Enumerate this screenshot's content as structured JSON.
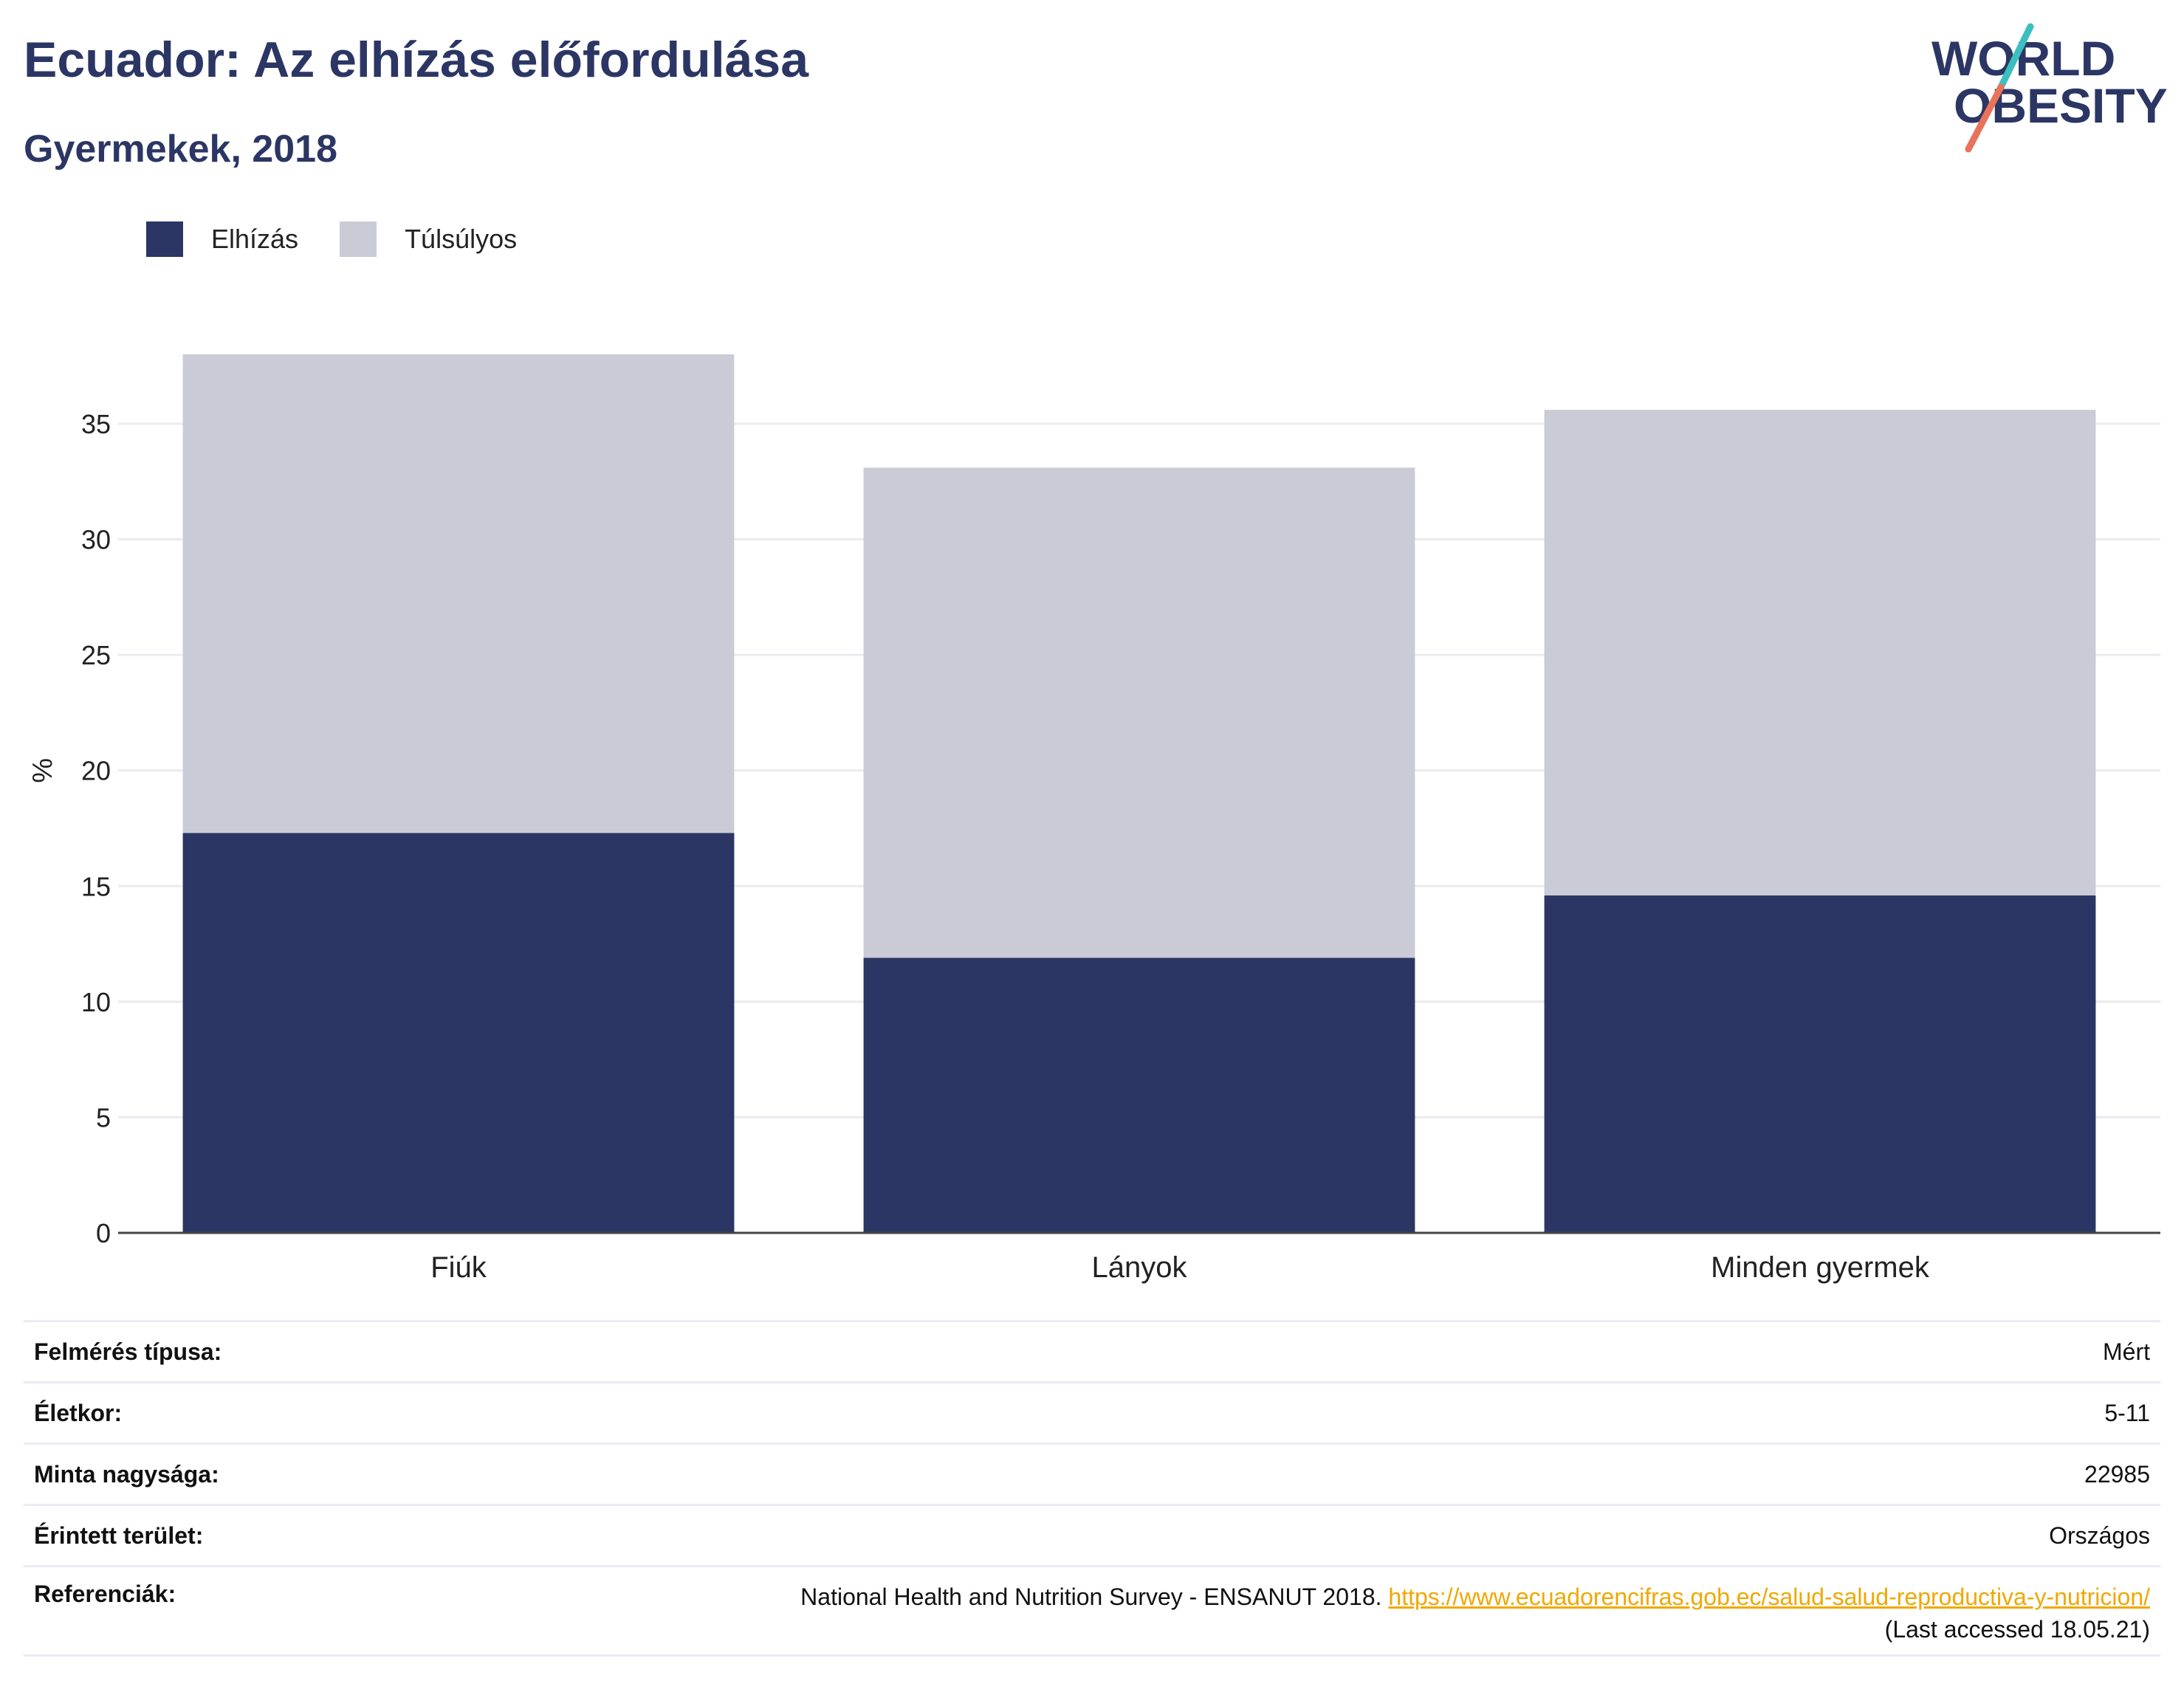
{
  "title": "Ecuador: Az elhízás előfordulása",
  "subtitle": "Gyermekek, 2018",
  "logo": {
    "line1": "WORLD",
    "line2": "OBESITY",
    "accent_teal": "#3bbfbf",
    "accent_coral": "#e8735a",
    "text_color": "#2b3664"
  },
  "legend": [
    {
      "label": "Elhízás",
      "color": "#2b3664"
    },
    {
      "label": "Túlsúlyos",
      "color": "#cacbd7"
    }
  ],
  "chart_data": {
    "type": "bar",
    "stacked": true,
    "categories": [
      "Fiúk",
      "Lányok",
      "Minden gyermek"
    ],
    "series": [
      {
        "name": "Elhízás",
        "values": [
          17.3,
          11.9,
          14.6
        ],
        "color": "#2b3664"
      },
      {
        "name": "Túlsúlyos",
        "values": [
          20.7,
          21.2,
          21.0
        ],
        "color": "#cacbd7"
      }
    ],
    "ylabel": "%",
    "ylim": [
      0,
      38
    ],
    "yticks": [
      0,
      5,
      10,
      15,
      20,
      25,
      30,
      35
    ],
    "grid": true
  },
  "meta": [
    {
      "label": "Felmérés típusa:",
      "value": "Mért"
    },
    {
      "label": "Életkor:",
      "value": "5-11"
    },
    {
      "label": "Minta nagysága:",
      "value": "22985"
    },
    {
      "label": "Érintett terület:",
      "value": "Országos"
    }
  ],
  "reference": {
    "label": "Referenciák:",
    "text": "National Health and Nutrition Survey - ENSANUT 2018.",
    "link": "https://www.ecuadorencifras.gob.ec/salud-salud-reproductiva-y-nutricion/",
    "accessed": "(Last accessed 18.05.21)"
  }
}
